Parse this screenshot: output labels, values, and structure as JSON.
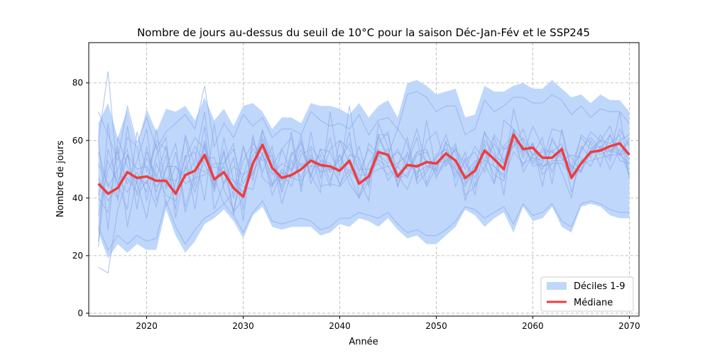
{
  "chart_data": {
    "type": "line",
    "title": "Nombre de jours au-dessus du seuil de 10°C pour la saison Déc-Jan-Fév et le SSP245",
    "xlabel": "Année",
    "ylabel": "Nombre de jours",
    "xlim": [
      2014,
      2071
    ],
    "ylim": [
      -1,
      94
    ],
    "xticks": [
      2020,
      2030,
      2040,
      2050,
      2060,
      2070
    ],
    "yticks": [
      0,
      20,
      40,
      60,
      80
    ],
    "grid": true,
    "legend_position": "bottom-right",
    "colors": {
      "band": "#bfd7fb",
      "members": "#8aa8e6",
      "median": "#f03c3c"
    },
    "x": [
      2015,
      2016,
      2017,
      2018,
      2019,
      2020,
      2021,
      2022,
      2023,
      2024,
      2025,
      2026,
      2027,
      2028,
      2029,
      2030,
      2031,
      2032,
      2033,
      2034,
      2035,
      2036,
      2037,
      2038,
      2039,
      2040,
      2041,
      2042,
      2043,
      2044,
      2045,
      2046,
      2047,
      2048,
      2049,
      2050,
      2051,
      2052,
      2053,
      2054,
      2055,
      2056,
      2057,
      2058,
      2059,
      2060,
      2061,
      2062,
      2063,
      2064,
      2065,
      2066,
      2067,
      2068,
      2069,
      2070
    ],
    "series": [
      {
        "name": "Médiane",
        "values": [
          45,
          41.5,
          43.5,
          49,
          47,
          47.5,
          46,
          46,
          41.5,
          48,
          49.5,
          55,
          46.5,
          49,
          43.5,
          40.5,
          52,
          58.5,
          50.5,
          47,
          48,
          50,
          53,
          51.5,
          51,
          49.5,
          53,
          45,
          47.5,
          56,
          55,
          47.5,
          51.5,
          51,
          52.5,
          52,
          55.5,
          53,
          47,
          49.5,
          56.5,
          53.5,
          50,
          62,
          57,
          57.5,
          54,
          54,
          57,
          47,
          52,
          56,
          56.5,
          58,
          59,
          55
        ]
      },
      {
        "name": "Déciles 1-9",
        "lower": [
          28,
          19,
          24,
          21,
          24,
          22,
          22,
          36,
          27,
          21,
          25,
          31,
          33,
          36,
          32,
          26,
          34,
          37,
          30,
          29,
          30,
          30,
          30,
          27,
          28,
          31,
          30,
          33,
          32,
          30,
          33,
          29,
          26,
          27,
          24,
          24,
          27,
          30,
          36,
          34,
          30,
          33,
          35,
          28,
          37,
          32,
          33,
          37,
          30,
          28,
          37,
          38,
          37,
          34,
          33,
          33
        ],
        "upper": [
          66,
          73,
          61,
          71,
          58,
          71,
          63,
          71,
          70,
          72,
          67,
          75,
          67,
          71,
          65,
          72,
          73,
          70,
          64,
          68,
          68,
          66,
          73,
          72,
          72,
          71,
          69,
          73,
          68,
          72,
          74,
          68,
          80,
          81,
          79,
          76,
          77,
          78,
          68,
          69,
          79,
          77,
          77,
          79,
          80,
          78,
          78,
          81,
          78,
          75,
          76,
          73,
          76,
          74,
          74,
          70
        ]
      }
    ],
    "members": [
      [
        16,
        14,
        36,
        47,
        42,
        54,
        48,
        41,
        39,
        55,
        36,
        59,
        42,
        56,
        34,
        58,
        46,
        63,
        55,
        38,
        49,
        60,
        47,
        57,
        56,
        48,
        72,
        52,
        45,
        62,
        53,
        56,
        52,
        61,
        45,
        54,
        57,
        48,
        56,
        44,
        51,
        59,
        53,
        63,
        56,
        59,
        44,
        61,
        54,
        51,
        61,
        57,
        60,
        65,
        55,
        60
      ],
      [
        25,
        66,
        39,
        65,
        45,
        33,
        52,
        44,
        56,
        35,
        47,
        65,
        36,
        45,
        54,
        32,
        61,
        49,
        58,
        42,
        55,
        59,
        48,
        42,
        70,
        50,
        63,
        41,
        48,
        61,
        55,
        64,
        59,
        46,
        67,
        49,
        60,
        44,
        54,
        41,
        59,
        45,
        67,
        64,
        49,
        55,
        61,
        45,
        64,
        50,
        56,
        63,
        60,
        54,
        70,
        47
      ],
      [
        40,
        35,
        58,
        30,
        47,
        45,
        60,
        57,
        42,
        54,
        56,
        39,
        66,
        43,
        36,
        48,
        51,
        64,
        49,
        46,
        63,
        44,
        58,
        53,
        44,
        60,
        52,
        47,
        39,
        66,
        58,
        44,
        53,
        64,
        51,
        50,
        59,
        56,
        39,
        50,
        63,
        51,
        48,
        71,
        58,
        53,
        50,
        57,
        49,
        40,
        58,
        54,
        62,
        56,
        60,
        62
      ],
      [
        56,
        44,
        50,
        57,
        36,
        58,
        42,
        55,
        36,
        62,
        51,
        49,
        52,
        52,
        59,
        36,
        62,
        47,
        44,
        57,
        61,
        42,
        63,
        47,
        57,
        60,
        57,
        49,
        57,
        53,
        51,
        52,
        55,
        48,
        60,
        63,
        51,
        57,
        50,
        58,
        53,
        62,
        57,
        58,
        64,
        54,
        53,
        64,
        63,
        49,
        57,
        61,
        57,
        62,
        53,
        52
      ],
      [
        60,
        84,
        47,
        42,
        49,
        42,
        64,
        43,
        51,
        47,
        53,
        70,
        43,
        61,
        46,
        44,
        43,
        56,
        41,
        49,
        44,
        55,
        57,
        44,
        45,
        44,
        48,
        58,
        46,
        54,
        57,
        47,
        48,
        56,
        57,
        47,
        54,
        59,
        41,
        44,
        63,
        57,
        41,
        64,
        55,
        65,
        58,
        49,
        58,
        54,
        49,
        56,
        57,
        53,
        64,
        58
      ],
      [
        34,
        50,
        56,
        45,
        53,
        64,
        39,
        50,
        59,
        37,
        49,
        58,
        47,
        38,
        42,
        58,
        48,
        60,
        51,
        57,
        49,
        57,
        48,
        57,
        49,
        55,
        45,
        40,
        52,
        57,
        46,
        51,
        61,
        45,
        49,
        54,
        62,
        51,
        48,
        53,
        52,
        45,
        57,
        60,
        51,
        59,
        48,
        52,
        56,
        47,
        50,
        57,
        58,
        50,
        57,
        48
      ],
      [
        47,
        39,
        44,
        61,
        58,
        39,
        55,
        61,
        33,
        51,
        42,
        54,
        54,
        45,
        51,
        48,
        57,
        53,
        55,
        42,
        53,
        47,
        55,
        49,
        61,
        44,
        55,
        54,
        44,
        62,
        62,
        48,
        43,
        52,
        44,
        51,
        55,
        47,
        53,
        56,
        49,
        61,
        52,
        58,
        61,
        55,
        56,
        56,
        54,
        47,
        62,
        59,
        51,
        62,
        55,
        61
      ],
      [
        52,
        45,
        40,
        55,
        50,
        51,
        44,
        47,
        46,
        50,
        58,
        52,
        44,
        57,
        40,
        53,
        59,
        55,
        48,
        52,
        50,
        62,
        45,
        53,
        52,
        45,
        50,
        45,
        59,
        55,
        52,
        57,
        50,
        56,
        53,
        48,
        52,
        58,
        45,
        49,
        57,
        54,
        58,
        62,
        54,
        59,
        51,
        53,
        53,
        55,
        54,
        51,
        58,
        56,
        59,
        53
      ],
      [
        23,
        57,
        45,
        36,
        63,
        49,
        59,
        37,
        45,
        61,
        44,
        60,
        46,
        51,
        35,
        40,
        55,
        58,
        45,
        49,
        47,
        52,
        51,
        55,
        46,
        55,
        48,
        40,
        46,
        59,
        63,
        44,
        56,
        47,
        50,
        55,
        57,
        50,
        44,
        52,
        56,
        48,
        46,
        60,
        58,
        52,
        57,
        56,
        59,
        42,
        53,
        55,
        60,
        59,
        62,
        47
      ],
      [
        60,
        29,
        61,
        51,
        45,
        56,
        47,
        58,
        41,
        54,
        61,
        57,
        45,
        52,
        57,
        45,
        52,
        61,
        53,
        44,
        56,
        51,
        54,
        49,
        50,
        53,
        59,
        50,
        50,
        52,
        48,
        51,
        47,
        55,
        56,
        49,
        53,
        57,
        52,
        47,
        60,
        55,
        52,
        64,
        60,
        51,
        52,
        60,
        55,
        51,
        49,
        60,
        55,
        57,
        55,
        56
      ],
      [
        41,
        53,
        45,
        55,
        41,
        46,
        37,
        51,
        51,
        45,
        47,
        48,
        51,
        49,
        46,
        42,
        49,
        55,
        44,
        50,
        47,
        46,
        51,
        51,
        50,
        50,
        52,
        48,
        48,
        50,
        51,
        46,
        52,
        49,
        51,
        52,
        53,
        50,
        46,
        51,
        53,
        51,
        47,
        56,
        52,
        54,
        51,
        52,
        52,
        48,
        52,
        53,
        54,
        55,
        55,
        52
      ],
      [
        70,
        62,
        53,
        72,
        59,
        68,
        57,
        63,
        66,
        69,
        64,
        79,
        58,
        66,
        61,
        69,
        65,
        68,
        61,
        64,
        64,
        62,
        70,
        67,
        65,
        66,
        64,
        69,
        62,
        67,
        68,
        64,
        76,
        77,
        75,
        70,
        72,
        72,
        62,
        64,
        74,
        70,
        72,
        75,
        75,
        73,
        73,
        76,
        74,
        69,
        72,
        68,
        71,
        70,
        70,
        66
      ],
      [
        30,
        22,
        27,
        24,
        27,
        25,
        26,
        39,
        30,
        24,
        29,
        33,
        35,
        38,
        34,
        28,
        35,
        39,
        32,
        31,
        32,
        33,
        32,
        29,
        30,
        33,
        33,
        35,
        34,
        33,
        35,
        31,
        28,
        29,
        27,
        27,
        29,
        32,
        37,
        36,
        33,
        35,
        37,
        31,
        38,
        34,
        35,
        38,
        32,
        30,
        38,
        39,
        38,
        36,
        35,
        35
      ]
    ]
  }
}
